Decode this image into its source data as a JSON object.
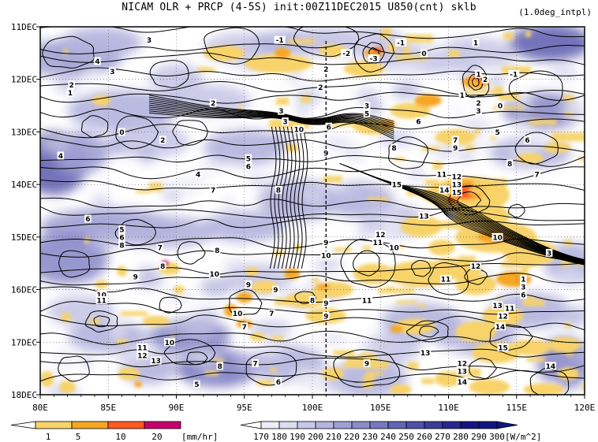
{
  "title": "NICAM  OLR + PRCP (4-5S) init:00Z11DEC2015 U850(cnt) sklb",
  "interp_note": "(1.0deg_intpl)",
  "colors": {
    "prcp": [
      "#ffffff",
      "#f7d36a",
      "#f5a623",
      "#ff5a1f",
      "#c8006e"
    ],
    "olr": [
      "#ffffff",
      "#eeeef8",
      "#dcdcf0",
      "#c8c8e8",
      "#b4b4de",
      "#a0a0d4",
      "#8c8cca",
      "#7878c0",
      "#6464b4",
      "#5050a8",
      "#3c3c9c",
      "#282890",
      "#141482"
    ]
  },
  "chart_data": {
    "type": "heatmap",
    "title": "NICAM  OLR + PRCP (4-5S) init:00Z11DEC2015 U850(cnt) sklb",
    "x_axis": {
      "min": 80,
      "max": 120,
      "ticks": [
        "80E",
        "85E",
        "90E",
        "95E",
        "100E",
        "105E",
        "110E",
        "115E",
        "120E"
      ]
    },
    "y_axis": {
      "ticks": [
        "11DEC",
        "12DEC",
        "13DEC",
        "14DEC",
        "15DEC",
        "16DEC",
        "17DEC",
        "18DEC"
      ]
    },
    "reference_line_lon": 101,
    "prcp_colorbar": {
      "ticks": [
        "1",
        "5",
        "10",
        "20"
      ],
      "unit": "[mm/hr]"
    },
    "olr_colorbar": {
      "ticks": [
        "170",
        "180",
        "190",
        "200",
        "210",
        "220",
        "230",
        "240",
        "250",
        "260",
        "270",
        "280",
        "290",
        "300"
      ],
      "unit": "[W/m^2]"
    },
    "contour_labels": [
      {
        "lon": 88.0,
        "day": 11.25,
        "text": "3"
      },
      {
        "lon": 84.2,
        "day": 11.65,
        "text": "4"
      },
      {
        "lon": 85.3,
        "day": 11.85,
        "text": "3"
      },
      {
        "lon": 82.3,
        "day": 12.1,
        "text": "2"
      },
      {
        "lon": 82.2,
        "day": 12.25,
        "text": "1"
      },
      {
        "lon": 92.7,
        "day": 12.45,
        "text": "2"
      },
      {
        "lon": 97.6,
        "day": 11.25,
        "text": "-1"
      },
      {
        "lon": 101.0,
        "day": 11.8,
        "text": "2"
      },
      {
        "lon": 100.6,
        "day": 12.15,
        "text": "2"
      },
      {
        "lon": 97.7,
        "day": 12.6,
        "text": "3"
      },
      {
        "lon": 98.0,
        "day": 12.8,
        "text": "3"
      },
      {
        "lon": 99.0,
        "day": 12.95,
        "text": "10"
      },
      {
        "lon": 101.2,
        "day": 12.9,
        "text": "6"
      },
      {
        "lon": 101.0,
        "day": 13.4,
        "text": "9"
      },
      {
        "lon": 95.3,
        "day": 13.5,
        "text": "5"
      },
      {
        "lon": 95.3,
        "day": 13.65,
        "text": "6"
      },
      {
        "lon": 91.6,
        "day": 13.8,
        "text": "4"
      },
      {
        "lon": 92.7,
        "day": 14.1,
        "text": "7"
      },
      {
        "lon": 97.5,
        "day": 14.1,
        "text": "8"
      },
      {
        "lon": 89.0,
        "day": 13.15,
        "text": "2"
      },
      {
        "lon": 86.0,
        "day": 13.0,
        "text": "0"
      },
      {
        "lon": 81.5,
        "day": 13.45,
        "text": "4"
      },
      {
        "lon": 83.5,
        "day": 14.65,
        "text": "6"
      },
      {
        "lon": 86.0,
        "day": 14.85,
        "text": "5"
      },
      {
        "lon": 86.0,
        "day": 15.0,
        "text": "6"
      },
      {
        "lon": 86.0,
        "day": 15.15,
        "text": "8"
      },
      {
        "lon": 88.8,
        "day": 15.2,
        "text": "7"
      },
      {
        "lon": 93.0,
        "day": 15.25,
        "text": "8"
      },
      {
        "lon": 89.0,
        "day": 15.55,
        "text": "8"
      },
      {
        "lon": 92.8,
        "day": 15.7,
        "text": "10"
      },
      {
        "lon": 95.3,
        "day": 15.9,
        "text": "9"
      },
      {
        "lon": 87.0,
        "day": 15.75,
        "text": "9"
      },
      {
        "lon": 84.5,
        "day": 16.1,
        "text": "10"
      },
      {
        "lon": 84.5,
        "day": 16.2,
        "text": "11"
      },
      {
        "lon": 94.5,
        "day": 16.45,
        "text": "10"
      },
      {
        "lon": 97.3,
        "day": 16.0,
        "text": "9"
      },
      {
        "lon": 97.0,
        "day": 16.45,
        "text": "7"
      },
      {
        "lon": 95.0,
        "day": 16.7,
        "text": "7"
      },
      {
        "lon": 101.0,
        "day": 15.1,
        "text": "9"
      },
      {
        "lon": 101.0,
        "day": 15.35,
        "text": "10"
      },
      {
        "lon": 101.0,
        "day": 16.25,
        "text": "9"
      },
      {
        "lon": 101.0,
        "day": 16.5,
        "text": "9"
      },
      {
        "lon": 100.0,
        "day": 16.2,
        "text": "8"
      },
      {
        "lon": 102.5,
        "day": 11.5,
        "text": "-2"
      },
      {
        "lon": 104.5,
        "day": 11.6,
        "text": "-3"
      },
      {
        "lon": 106.5,
        "day": 11.3,
        "text": "-1"
      },
      {
        "lon": 108.2,
        "day": 11.5,
        "text": "0"
      },
      {
        "lon": 104.0,
        "day": 12.5,
        "text": "3"
      },
      {
        "lon": 104.0,
        "day": 12.65,
        "text": "5"
      },
      {
        "lon": 107.8,
        "day": 12.8,
        "text": "6"
      },
      {
        "lon": 106.0,
        "day": 13.3,
        "text": "8"
      },
      {
        "lon": 106.2,
        "day": 14.0,
        "text": "15"
      },
      {
        "lon": 109.5,
        "day": 13.8,
        "text": "11"
      },
      {
        "lon": 109.7,
        "day": 14.1,
        "text": "14"
      },
      {
        "lon": 110.6,
        "day": 13.85,
        "text": "12"
      },
      {
        "lon": 110.6,
        "day": 14.0,
        "text": "13"
      },
      {
        "lon": 110.6,
        "day": 14.15,
        "text": "15"
      },
      {
        "lon": 108.2,
        "day": 14.6,
        "text": "13"
      },
      {
        "lon": 105.0,
        "day": 14.95,
        "text": "12"
      },
      {
        "lon": 104.8,
        "day": 15.1,
        "text": "11"
      },
      {
        "lon": 106.0,
        "day": 15.2,
        "text": "10"
      },
      {
        "lon": 110.5,
        "day": 13.15,
        "text": "7"
      },
      {
        "lon": 110.5,
        "day": 13.3,
        "text": "9"
      },
      {
        "lon": 112.0,
        "day": 11.3,
        "text": "1"
      },
      {
        "lon": 112.2,
        "day": 11.9,
        "text": "1"
      },
      {
        "lon": 112.7,
        "day": 12.0,
        "text": "2"
      },
      {
        "lon": 114.8,
        "day": 11.9,
        "text": "-1"
      },
      {
        "lon": 111.0,
        "day": 12.3,
        "text": "1"
      },
      {
        "lon": 112.2,
        "day": 12.45,
        "text": "2"
      },
      {
        "lon": 112.2,
        "day": 12.6,
        "text": "3"
      },
      {
        "lon": 113.8,
        "day": 12.5,
        "text": "0"
      },
      {
        "lon": 113.6,
        "day": 13.0,
        "text": "5"
      },
      {
        "lon": 115.8,
        "day": 13.15,
        "text": "6"
      },
      {
        "lon": 114.5,
        "day": 13.6,
        "text": "8"
      },
      {
        "lon": 116.5,
        "day": 13.8,
        "text": "7"
      },
      {
        "lon": 113.6,
        "day": 15.0,
        "text": "10"
      },
      {
        "lon": 117.4,
        "day": 15.3,
        "text": "3"
      },
      {
        "lon": 112.0,
        "day": 15.55,
        "text": "12"
      },
      {
        "lon": 109.8,
        "day": 15.8,
        "text": "11"
      },
      {
        "lon": 104.0,
        "day": 16.2,
        "text": "11"
      },
      {
        "lon": 115.5,
        "day": 15.8,
        "text": "1"
      },
      {
        "lon": 115.5,
        "day": 15.95,
        "text": "3"
      },
      {
        "lon": 115.5,
        "day": 16.1,
        "text": "6"
      },
      {
        "lon": 113.6,
        "day": 16.3,
        "text": "13"
      },
      {
        "lon": 114.5,
        "day": 16.35,
        "text": "11"
      },
      {
        "lon": 114.0,
        "day": 16.5,
        "text": "12"
      },
      {
        "lon": 113.8,
        "day": 16.7,
        "text": "14"
      },
      {
        "lon": 114.0,
        "day": 17.1,
        "text": "15"
      },
      {
        "lon": 117.5,
        "day": 17.45,
        "text": "14"
      },
      {
        "lon": 111.0,
        "day": 17.4,
        "text": "12"
      },
      {
        "lon": 111.0,
        "day": 17.55,
        "text": "13"
      },
      {
        "lon": 111.0,
        "day": 17.75,
        "text": "14"
      },
      {
        "lon": 108.3,
        "day": 17.2,
        "text": "13"
      },
      {
        "lon": 104.0,
        "day": 17.4,
        "text": "9"
      },
      {
        "lon": 95.8,
        "day": 17.4,
        "text": "7"
      },
      {
        "lon": 93.2,
        "day": 17.45,
        "text": "8"
      },
      {
        "lon": 89.5,
        "day": 17.0,
        "text": "10"
      },
      {
        "lon": 87.5,
        "day": 17.1,
        "text": "11"
      },
      {
        "lon": 87.5,
        "day": 17.25,
        "text": "12"
      },
      {
        "lon": 88.5,
        "day": 17.35,
        "text": "13"
      },
      {
        "lon": 91.5,
        "day": 17.8,
        "text": "5"
      },
      {
        "lon": 97.5,
        "day": 17.75,
        "text": "6"
      }
    ]
  }
}
